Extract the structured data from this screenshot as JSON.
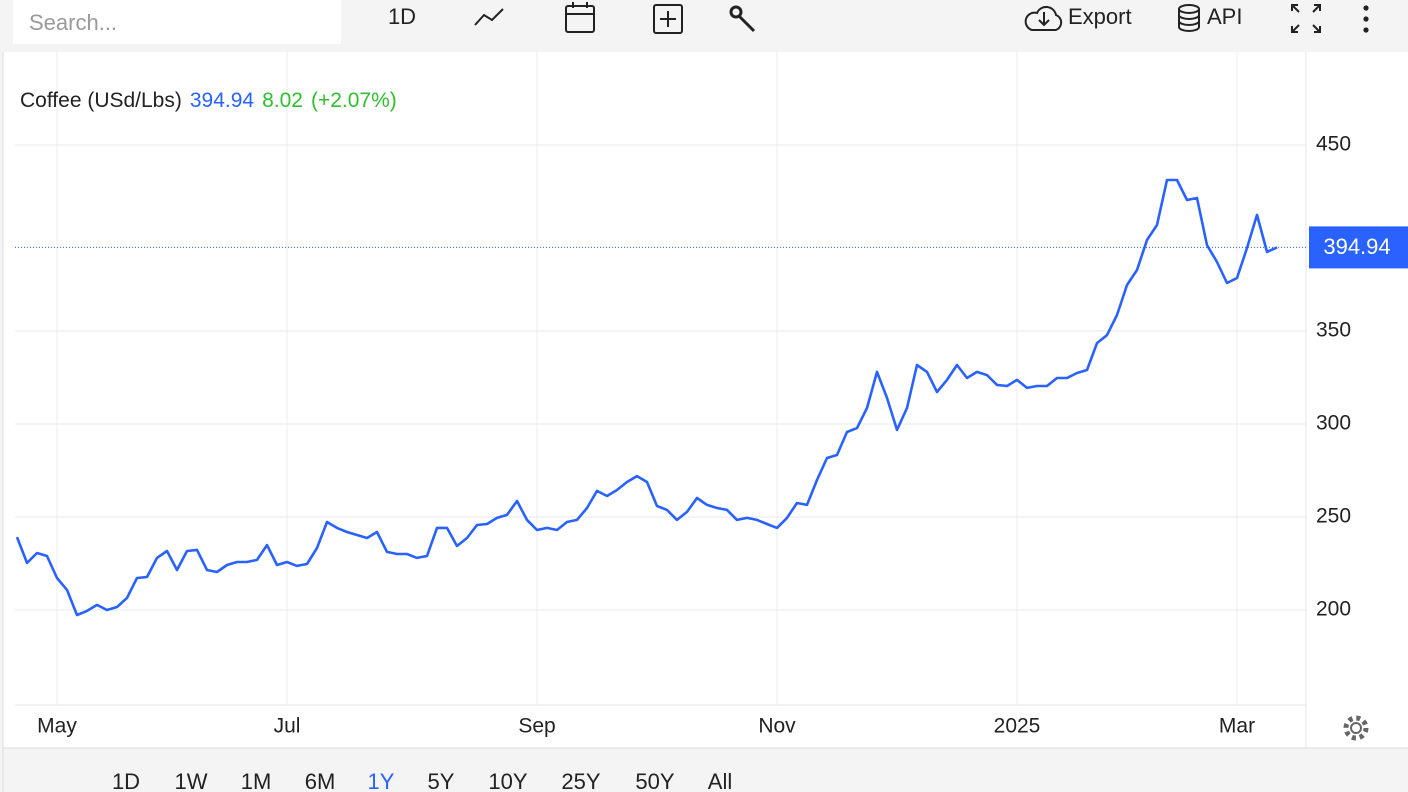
{
  "toolbar": {
    "search_placeholder": "Search...",
    "interval": "1D",
    "export": "Export",
    "api": "API"
  },
  "ranges": {
    "items": [
      "1D",
      "1W",
      "1M",
      "6M",
      "1Y",
      "5Y",
      "10Y",
      "25Y",
      "50Y",
      "All"
    ],
    "active": 4
  },
  "chart_data": {
    "type": "line",
    "title": "Coffee (USd/Lbs)",
    "change": 8.02,
    "change_percent_label": "(+2.07%)",
    "color": "#2962ff",
    "change_color": "#2fbf2f",
    "categories": [
      null,
      null,
      null,
      null,
      "May",
      null,
      null,
      null,
      null,
      null,
      null,
      null,
      null,
      null,
      null,
      null,
      null,
      null,
      null,
      null,
      null,
      null,
      null,
      null,
      null,
      null,
      null,
      "Jul",
      null,
      null,
      null,
      null,
      null,
      null,
      null,
      null,
      null,
      null,
      null,
      null,
      null,
      null,
      null,
      null,
      null,
      null,
      null,
      null,
      null,
      null,
      null,
      null,
      "Sep",
      null,
      null,
      null,
      null,
      null,
      null,
      null,
      null,
      null,
      null,
      null,
      null,
      null,
      null,
      null,
      null,
      null,
      null,
      null,
      null,
      null,
      null,
      null,
      "Nov",
      null,
      null,
      null,
      null,
      null,
      null,
      null,
      null,
      null,
      null,
      null,
      null,
      null,
      null,
      null,
      null,
      null,
      null,
      null,
      null,
      null,
      null,
      null,
      "2025",
      null,
      null,
      null,
      null,
      null,
      null,
      null,
      null,
      null,
      null,
      null,
      null,
      null,
      null,
      null,
      null,
      null,
      null,
      null,
      null,
      null,
      "Mar",
      null,
      null,
      null,
      null
    ],
    "values": [
      239.2,
      225.3,
      230.6,
      229.0,
      217.2,
      210.8,
      197.3,
      199.5,
      202.7,
      200.0,
      201.6,
      206.5,
      217.2,
      217.7,
      228.0,
      231.7,
      221.5,
      231.7,
      232.3,
      221.5,
      220.4,
      224.2,
      225.8,
      225.8,
      226.9,
      234.9,
      224.2,
      225.8,
      223.7,
      224.7,
      233.3,
      247.3,
      244.1,
      241.9,
      240.3,
      238.7,
      241.9,
      231.2,
      230.1,
      230.1,
      228.0,
      229.0,
      244.1,
      244.1,
      234.4,
      238.7,
      245.7,
      246.2,
      249.5,
      251.1,
      258.6,
      248.4,
      243.0,
      244.1,
      243.0,
      247.3,
      248.4,
      254.8,
      264.0,
      261.3,
      264.5,
      268.8,
      272.0,
      268.8,
      255.9,
      253.8,
      248.4,
      252.7,
      260.2,
      256.5,
      254.8,
      253.8,
      248.4,
      249.5,
      248.4,
      246.2,
      244.1,
      249.5,
      257.5,
      256.5,
      269.9,
      281.7,
      283.3,
      295.7,
      297.8,
      308.6,
      328.0,
      314.0,
      296.8,
      308.6,
      331.7,
      328.0,
      317.2,
      323.7,
      331.7,
      324.7,
      328.0,
      326.3,
      321.0,
      320.4,
      323.7,
      319.4,
      320.4,
      320.4,
      324.7,
      324.7,
      327.4,
      329.0,
      343.5,
      347.8,
      358.6,
      374.7,
      382.8,
      398.9,
      407.0,
      431.2,
      431.2,
      420.4,
      421.5,
      396.2,
      387.1,
      375.8,
      378.5,
      394.6,
      412.4,
      392.5,
      394.94
    ],
    "ylim": [
      148.9,
      500
    ],
    "yticks": [
      200,
      250,
      300,
      350,
      450
    ],
    "grid": true
  }
}
